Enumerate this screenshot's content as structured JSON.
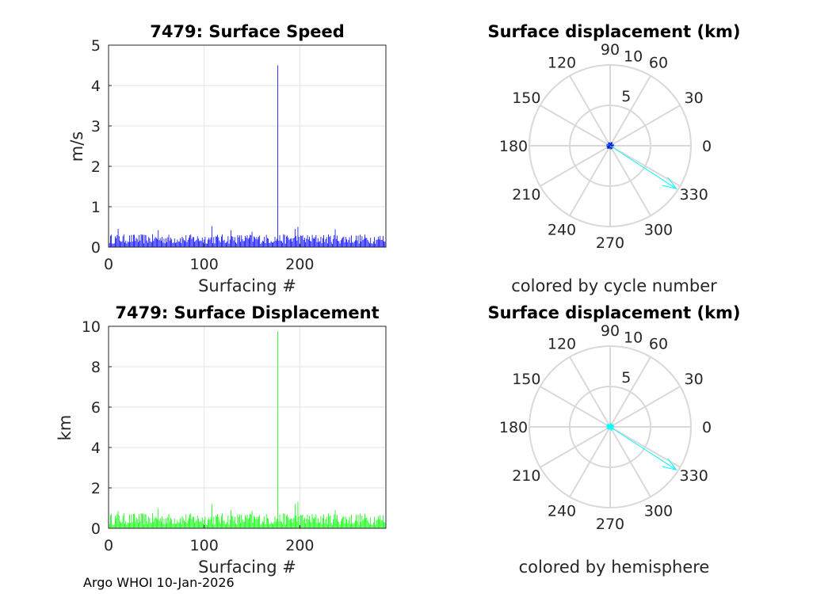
{
  "footer": "Argo WHOI 10-Jan-2026",
  "chart_data": [
    {
      "type": "bar",
      "title": "7479: Surface Speed",
      "xlabel": "Surfacing #",
      "ylabel": "m/s",
      "xlim": [
        0,
        290
      ],
      "ylim": [
        0,
        5
      ],
      "xticks": [
        0,
        100,
        200
      ],
      "yticks": [
        0,
        1,
        2,
        3,
        4,
        5
      ],
      "grid": true,
      "color": "#0000ff",
      "n": 290,
      "baseline_approx": 0.2,
      "noise_approx": 0.12,
      "spikes": [
        {
          "x": 177,
          "y": 4.5
        },
        {
          "x": 10,
          "y": 0.45
        },
        {
          "x": 52,
          "y": 0.42
        },
        {
          "x": 108,
          "y": 0.52
        },
        {
          "x": 128,
          "y": 0.42
        },
        {
          "x": 150,
          "y": 0.38
        },
        {
          "x": 195,
          "y": 0.45
        },
        {
          "x": 198,
          "y": 0.5
        },
        {
          "x": 237,
          "y": 0.44
        }
      ]
    },
    {
      "type": "bar",
      "title": "7479: Surface Displacement",
      "xlabel": "Surfacing #",
      "ylabel": "km",
      "xlim": [
        0,
        290
      ],
      "ylim": [
        0,
        10
      ],
      "xticks": [
        0,
        100,
        200
      ],
      "yticks": [
        0,
        2,
        4,
        6,
        8,
        10
      ],
      "grid": true,
      "color": "#00ff00",
      "n": 290,
      "baseline_approx": 0.45,
      "noise_approx": 0.3,
      "spikes": [
        {
          "x": 177,
          "y": 9.75
        },
        {
          "x": 10,
          "y": 0.85
        },
        {
          "x": 52,
          "y": 1.0
        },
        {
          "x": 108,
          "y": 1.2
        },
        {
          "x": 128,
          "y": 0.9
        },
        {
          "x": 150,
          "y": 0.85
        },
        {
          "x": 195,
          "y": 1.2
        },
        {
          "x": 198,
          "y": 1.3
        },
        {
          "x": 237,
          "y": 0.9
        }
      ]
    },
    {
      "type": "scatter",
      "coord": "polar",
      "title": "Surface displacement (km)",
      "caption": "colored by cycle number",
      "rmax": 10,
      "rticks": [
        5,
        10
      ],
      "angle_ticks": [
        0,
        30,
        60,
        90,
        120,
        150,
        180,
        210,
        240,
        270,
        300,
        330
      ],
      "cluster_radius_approx": 0.5,
      "point_colors": [
        "#0000ff",
        "#0000cc",
        "#1e50ff",
        "#00c8ff",
        "#000080",
        "#3333ff"
      ],
      "outlier": {
        "angle_deg": 327,
        "r": 9.75,
        "color": "#00ffff"
      }
    },
    {
      "type": "scatter",
      "coord": "polar",
      "title": "Surface displacement (km)",
      "caption": "colored by hemisphere",
      "rmax": 10,
      "rticks": [
        5,
        10
      ],
      "angle_ticks": [
        0,
        30,
        60,
        90,
        120,
        150,
        180,
        210,
        240,
        270,
        300,
        330
      ],
      "cluster_radius_approx": 0.5,
      "point_colors": [
        "#00ffff"
      ],
      "outlier": {
        "angle_deg": 327,
        "r": 9.75,
        "color": "#00ffff"
      }
    }
  ]
}
